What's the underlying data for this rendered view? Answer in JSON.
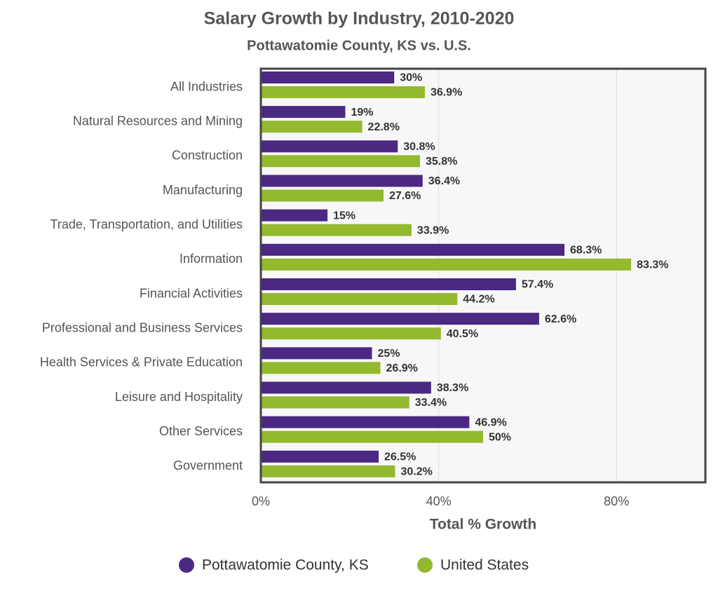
{
  "chart_data": {
    "type": "bar",
    "orientation": "horizontal",
    "title": "Salary Growth by Industry, 2010-2020",
    "subtitle": "Pottawatomie County, KS vs. U.S.",
    "x_label": "Total % Growth",
    "categories": [
      "All Industries",
      "Natural Resources and Mining",
      "Construction",
      "Manufacturing",
      "Trade, Transportation, and Utilities",
      "Information",
      "Financial Activities",
      "Professional and Business Services",
      "Health Services & Private Education",
      "Leisure and Hospitality",
      "Other Services",
      "Government"
    ],
    "series": [
      {
        "name": "Pottawatomie County, KS",
        "color": "#4b2882",
        "values": [
          30,
          19,
          30.8,
          36.4,
          15,
          68.3,
          57.4,
          62.6,
          25,
          38.3,
          46.9,
          26.5
        ],
        "value_labels": [
          "30%",
          "19%",
          "30.8%",
          "36.4%",
          "15%",
          "68.3%",
          "57.4%",
          "62.6%",
          "25%",
          "38.3%",
          "46.9%",
          "26.5%"
        ]
      },
      {
        "name": "United States",
        "color": "#93b92f",
        "values": [
          36.9,
          22.8,
          35.8,
          27.6,
          33.9,
          83.3,
          44.2,
          40.5,
          26.9,
          33.4,
          50,
          30.2
        ],
        "value_labels": [
          "36.9%",
          "22.8%",
          "35.8%",
          "27.6%",
          "33.9%",
          "83.3%",
          "44.2%",
          "40.5%",
          "26.9%",
          "33.4%",
          "50%",
          "30.2%"
        ]
      }
    ],
    "xlim": [
      0,
      100
    ],
    "xticks": [
      {
        "value": 0,
        "label": "0%"
      },
      {
        "value": 40,
        "label": "40%"
      },
      {
        "value": 80,
        "label": "80%"
      }
    ],
    "grid": true,
    "legend": "bottom"
  }
}
